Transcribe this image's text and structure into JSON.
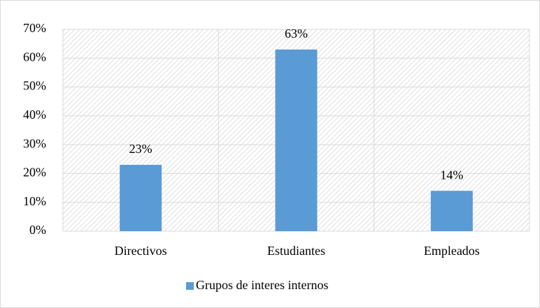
{
  "chart_data": {
    "type": "bar",
    "categories": [
      "Directivos",
      "Estudiantes",
      "Empleados"
    ],
    "series": [
      {
        "name": "Grupos de interes internos",
        "color": "#5b9bd5",
        "values": [
          23,
          63,
          14
        ],
        "value_labels": [
          "23%",
          "63%",
          "14%"
        ]
      }
    ],
    "ylim": [
      0,
      70
    ],
    "yticks": [
      {
        "value": 0,
        "label": "0%"
      },
      {
        "value": 10,
        "label": "10%"
      },
      {
        "value": 20,
        "label": "20%"
      },
      {
        "value": 30,
        "label": "30%"
      },
      {
        "value": 40,
        "label": "40%"
      },
      {
        "value": 50,
        "label": "50%"
      },
      {
        "value": 60,
        "label": "60%"
      },
      {
        "value": 70,
        "label": "70%"
      }
    ],
    "grid": true,
    "legend": "bottom"
  }
}
